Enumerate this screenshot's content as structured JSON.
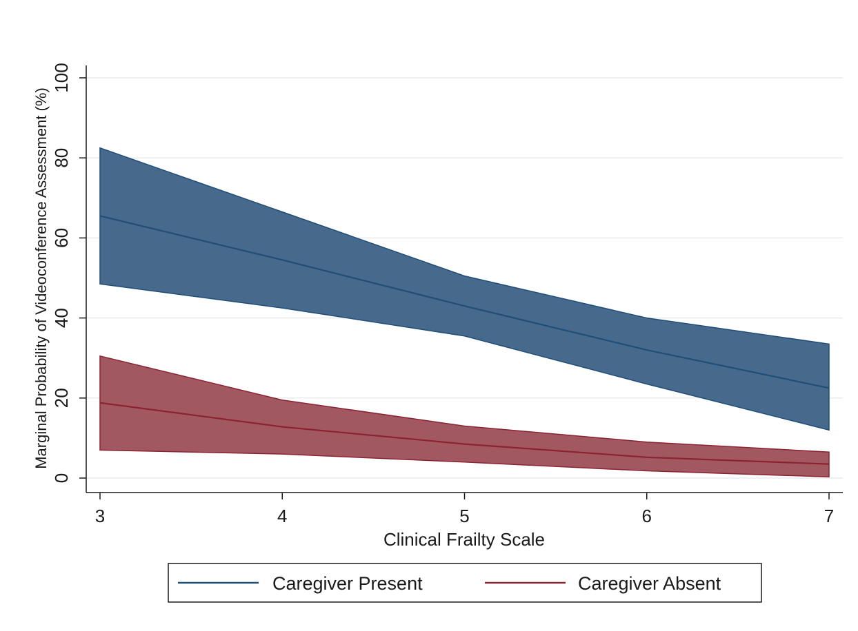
{
  "chart_data": {
    "type": "area",
    "title": "",
    "xlabel": "Clinical Frailty Scale",
    "ylabel": "Marginal Probability of Videoconference Assessment (%)",
    "xlim": [
      3,
      7
    ],
    "ylim": [
      0,
      100
    ],
    "x": [
      3,
      4,
      5,
      6,
      7
    ],
    "xticks": [
      3,
      4,
      5,
      6,
      7
    ],
    "yticks": [
      0,
      20,
      40,
      60,
      80,
      100
    ],
    "grid": true,
    "legend_position": "bottom",
    "series": [
      {
        "name": "Caregiver Present",
        "color": "#1f4e79",
        "fill": "#47698b",
        "values": [
          65.5,
          54.5,
          43,
          32,
          22.5
        ],
        "lower": [
          48.5,
          42.5,
          35.5,
          23.5,
          12
        ],
        "upper": [
          82.5,
          66.5,
          50.5,
          40,
          33.5
        ]
      },
      {
        "name": "Caregiver Absent",
        "color": "#8b2332",
        "fill": "#a25860",
        "values": [
          18.8,
          12.8,
          8.5,
          5.2,
          3.5
        ],
        "lower": [
          7,
          6,
          4,
          1.8,
          0.3
        ],
        "upper": [
          30.5,
          19.5,
          13,
          9,
          6.5
        ]
      }
    ]
  }
}
